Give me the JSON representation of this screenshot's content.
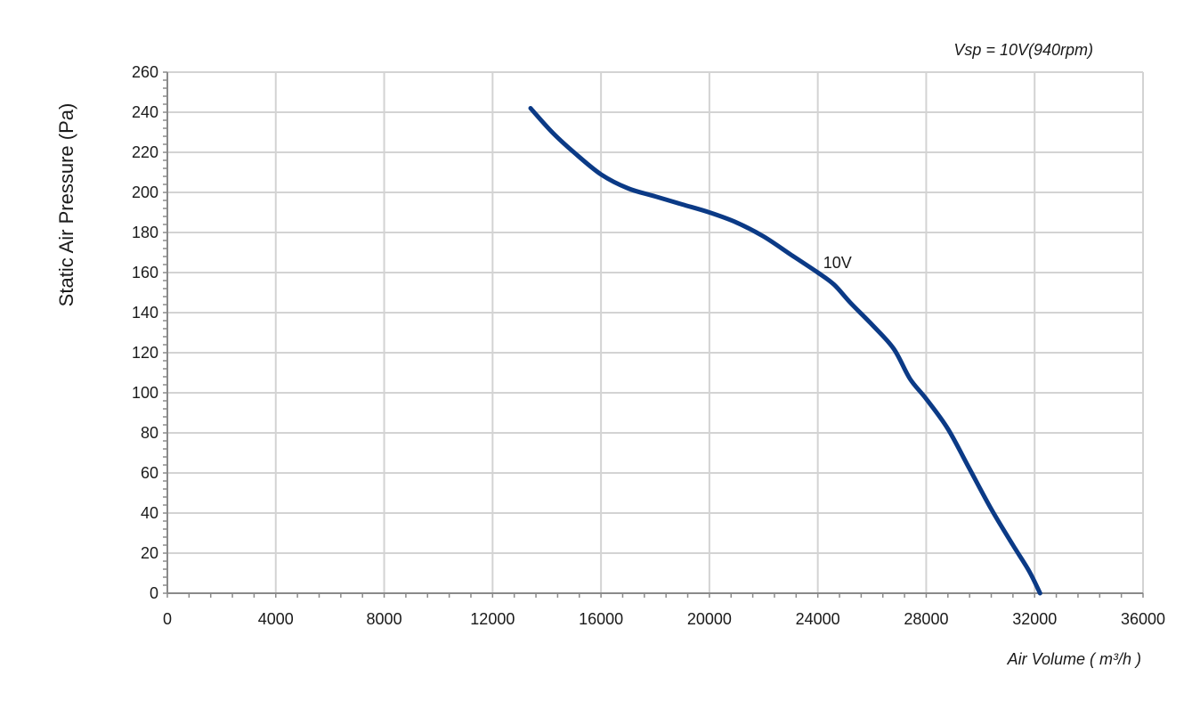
{
  "chart_data": {
    "type": "line",
    "title": "",
    "annotation": "Vsp = 10V(940rpm)",
    "xlabel": "Air Volume ( m³/h )",
    "ylabel": "Static Air Pressure  (Pa)",
    "xlim": [
      0,
      36000
    ],
    "ylim": [
      0,
      260
    ],
    "xticks": [
      0,
      4000,
      8000,
      12000,
      16000,
      20000,
      24000,
      28000,
      32000,
      36000
    ],
    "yticks": [
      0,
      20,
      40,
      60,
      80,
      100,
      120,
      140,
      160,
      180,
      200,
      220,
      240,
      260
    ],
    "grid": true,
    "colors": {
      "series": "#0b3a86",
      "grid": "#d3d3d3",
      "axis": "#8a8a8a"
    },
    "series": [
      {
        "name": "10V",
        "x": [
          13400,
          14200,
          15000,
          16000,
          17000,
          18000,
          19000,
          20000,
          21000,
          22000,
          23000,
          24000,
          24600,
          25200,
          26000,
          26800,
          27400,
          28000,
          28800,
          29600,
          30400,
          31200,
          31800,
          32200
        ],
        "y": [
          242,
          230,
          220,
          209,
          202,
          198,
          194,
          190,
          185,
          178,
          169,
          160,
          154,
          145,
          134,
          122,
          107,
          97,
          82,
          62,
          42,
          24,
          11,
          0
        ]
      }
    ]
  }
}
